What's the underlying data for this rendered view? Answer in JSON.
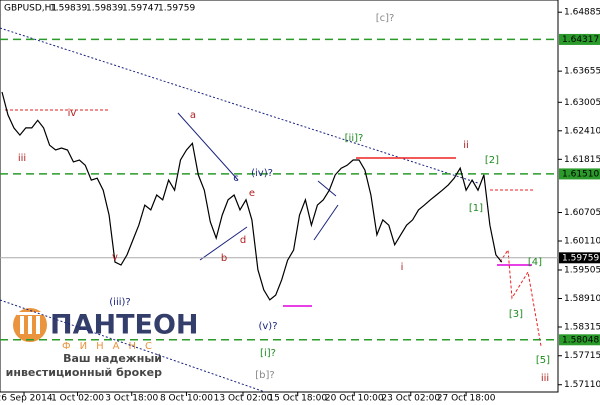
{
  "chart_data": {
    "type": "line",
    "title": "GBPUSD,H1",
    "ohlc": [
      1.59839,
      1.59839,
      1.59747,
      1.59759
    ],
    "color": "#000000",
    "values": [
      1.6322,
      1.6274,
      1.6247,
      1.6232,
      1.6247,
      1.6247,
      1.6263,
      1.6247,
      1.6211,
      1.6201,
      1.6205,
      1.6201,
      1.6176,
      1.618,
      1.6169,
      1.6138,
      1.6142,
      1.6117,
      1.6065,
      1.5967,
      1.5961,
      1.5982,
      1.6013,
      1.6044,
      1.6086,
      1.6076,
      1.6107,
      1.6097,
      1.6138,
      1.6117,
      1.618,
      1.6201,
      1.6215,
      1.6149,
      1.6117,
      1.6051,
      1.6017,
      1.6065,
      1.6097,
      1.6107,
      1.6076,
      1.6097,
      1.6055,
      1.5951,
      1.5909,
      1.5888,
      1.5898,
      1.593,
      1.5971,
      1.5992,
      1.6065,
      1.6097,
      1.6044,
      1.6086,
      1.6097,
      1.6117,
      1.6149,
      1.6163,
      1.6169,
      1.618,
      1.618,
      1.6159,
      1.6107,
      1.6024,
      1.6055,
      1.6044,
      1.6003,
      1.6024,
      1.6044,
      1.6055,
      1.6076,
      1.6086,
      1.6097,
      1.6107,
      1.6117,
      1.6128,
      1.6142,
      1.6163,
      1.6117,
      1.6138,
      1.6117,
      1.6149,
      1.6044,
      1.5982,
      1.5967
    ],
    "ylim": [
      1.57,
      1.6514
    ],
    "yticks": [
      1.64885,
      1.63655,
      1.63005,
      {
        "value": 1.6241,
        "label": "1.62410"
      },
      1.61815,
      1.60705,
      {
        "value": 1.6011,
        "label": "1.60110"
      },
      1.59505,
      {
        "value": 1.5891,
        "label": "1.58910"
      },
      1.58315,
      1.57715,
      {
        "value": 1.5711,
        "label": "1.57110"
      }
    ],
    "xticks": [
      {
        "value": 3.7,
        "label": "26 Sep 2014"
      },
      {
        "value": 12.7,
        "label": "1 Oct 02:00"
      },
      {
        "value": 21.8,
        "label": "3 Oct 18:00"
      },
      {
        "value": 31,
        "label": "8 Oct 10:00"
      },
      {
        "value": 40.5,
        "label": "13 Oct 02:00"
      },
      {
        "value": 49.7,
        "label": "15 Oct 18:00"
      },
      {
        "value": 59.2,
        "label": "20 Oct 10:00"
      },
      {
        "value": 68.7,
        "label": "23 Oct 02:00"
      },
      {
        "value": 78,
        "label": "27 Oct 18:00"
      }
    ],
    "levels": [
      1.64317,
      {
        "value": 1.6151,
        "label": "1.61510"
      },
      1.58048
    ],
    "level_color": "#2a9a2a",
    "current_price": 1.59759,
    "annotations": [
      "[c]?",
      "iv",
      "iii",
      "v",
      "(iii)?",
      "a",
      "c",
      "e",
      "(iv)?",
      "b",
      "d",
      "(v)?",
      "[i]?",
      "[b]?",
      "[ii]?",
      "ii",
      "[2]",
      "[1]",
      "i",
      "[4]",
      "[3]",
      "[5]",
      "iii"
    ],
    "watermark": {
      "brand": "ПАНТЕОН",
      "sub": "ФИНАНС",
      "line1": "Ваш надежный",
      "line2": "инвестиционный брокер"
    }
  }
}
